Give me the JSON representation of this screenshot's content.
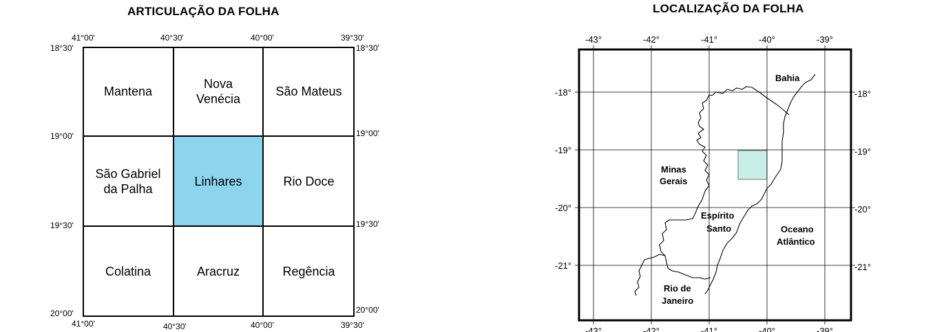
{
  "articulacao": {
    "title": "ARTICULAÇÃO DA FOLHA",
    "top_longitudes": [
      "41°00'",
      "40°30'",
      "40°00'",
      "39°30'"
    ],
    "bottom_longitudes": [
      "41°00'",
      "40°30'",
      "40°00'",
      "39°30'"
    ],
    "left_latitudes": [
      "18°30'",
      "19°00'",
      "19°30'",
      "20°00'"
    ],
    "right_latitudes": [
      "18°30'",
      "19°00'",
      "19°30'",
      "20°00'"
    ],
    "cells": [
      {
        "name": "Mantena"
      },
      {
        "name": "Nova\nVenécia"
      },
      {
        "name": "São Mateus"
      },
      {
        "name": "São Gabriel\nda Palha"
      },
      {
        "name": "Linhares",
        "highlighted": true
      },
      {
        "name": "Rio Doce"
      },
      {
        "name": "Colatina"
      },
      {
        "name": "Aracruz"
      },
      {
        "name": "Regência"
      }
    ],
    "highlight_color": "#8dd4ef"
  },
  "localizacao": {
    "title": "LOCALIZAÇÃO DA FOLHA",
    "longitudes": [
      "-43°",
      "-42°",
      "-41°",
      "-40°",
      "-39°"
    ],
    "latitudes_left": [
      "-18°",
      "-19°",
      "-20°",
      "-21°"
    ],
    "latitudes_right": [
      "-18°",
      "-19°",
      "-20°",
      "-21°"
    ],
    "labels": {
      "bahia": "Bahia",
      "minas_1": "Minas",
      "minas_2": "Gerais",
      "es_1": "Espírito",
      "es_2": "Santo",
      "oceano_1": "Oceano",
      "oceano_2": "Atlântico",
      "rio_1": "Rio de",
      "rio_2": "Janeiro"
    },
    "highlight_color": "#c8eee8"
  }
}
